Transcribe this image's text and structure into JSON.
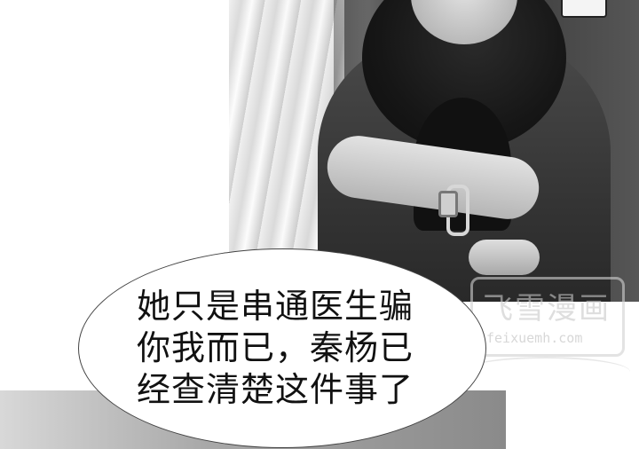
{
  "dialogue": {
    "lines": [
      "她只是串通医生骗",
      "你我而已，秦杨已",
      "经查清楚这件事了"
    ]
  },
  "watermark": {
    "title": "飞雪漫画",
    "url": "feixuemh.com"
  }
}
